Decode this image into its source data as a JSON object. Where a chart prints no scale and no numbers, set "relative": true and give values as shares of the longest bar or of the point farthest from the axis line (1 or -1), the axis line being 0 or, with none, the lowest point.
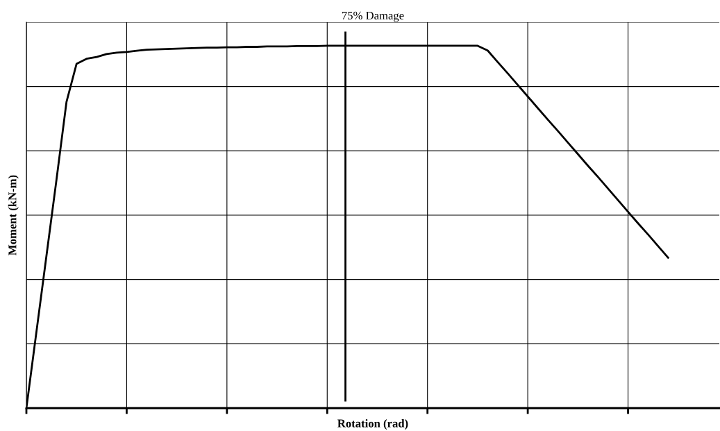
{
  "chart_data": {
    "type": "line",
    "title": "75% Damage",
    "xlabel": "Rotation (rad)",
    "ylabel": "Moment (kN-m)",
    "relative": true,
    "grid": true,
    "legend": false,
    "marker": "none",
    "line_style": "solid",
    "categories": [
      null,
      null,
      null,
      null,
      null,
      null,
      null,
      null,
      null,
      null,
      null,
      null,
      null,
      null,
      null,
      null,
      null,
      null,
      null,
      null,
      null,
      null,
      null,
      null,
      null,
      null,
      null,
      null,
      null,
      null,
      null,
      null,
      null,
      null,
      null,
      null,
      null,
      null,
      null,
      null,
      null,
      null,
      null,
      null,
      null,
      null,
      null,
      null,
      null,
      null,
      null,
      null,
      null,
      null,
      null,
      null,
      null,
      null,
      null,
      null,
      null,
      null,
      null,
      null,
      null,
      null,
      null,
      null,
      null,
      null
    ],
    "series": [
      {
        "color": "#000000",
        "values": [
          0,
          0.21,
          0.42,
          0.63,
          0.845,
          0.95,
          0.964,
          0.969,
          0.977,
          0.981,
          0.983,
          0.986,
          0.989,
          0.99,
          0.991,
          0.992,
          0.993,
          0.994,
          0.995,
          0.995,
          0.996,
          0.996,
          0.997,
          0.997,
          0.998,
          0.998,
          0.998,
          0.999,
          0.999,
          0.999,
          1,
          1,
          1,
          1,
          1,
          1,
          1,
          1,
          1,
          1,
          1,
          1,
          1,
          1,
          1,
          1,
          0.987,
          0.955,
          0.924,
          0.892,
          0.86,
          0.828,
          0.796,
          0.765,
          0.733,
          0.701,
          0.669,
          0.638,
          0.606,
          0.574,
          0.542,
          0.51,
          0.479,
          0.447,
          0.415,
          null,
          null,
          null,
          null,
          null
        ]
      }
    ]
  }
}
